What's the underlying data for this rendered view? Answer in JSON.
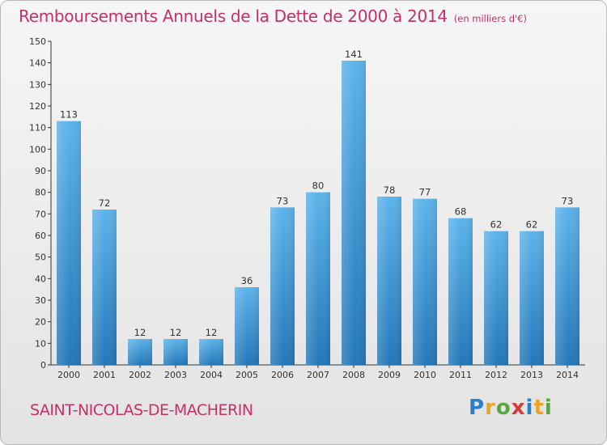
{
  "header": {
    "title": "Remboursements Annuels de la Dette de 2000 à 2014",
    "unit": "(en milliers d'€)"
  },
  "footer": {
    "commune": "SAINT-NICOLAS-DE-MACHERIN",
    "logo_letters": [
      "P",
      "r",
      "o",
      "x",
      "i",
      "t",
      "i"
    ]
  },
  "colors": {
    "title": "#c5306a",
    "bar_top": "#5cb3ea",
    "bar_bottom": "#2477b8",
    "axis": "#333333"
  },
  "chart_data": {
    "type": "bar",
    "title": "Remboursements Annuels de la Dette de 2000 à 2014",
    "ylabel": "",
    "xlabel": "",
    "categories": [
      "2000",
      "2001",
      "2002",
      "2003",
      "2004",
      "2005",
      "2006",
      "2007",
      "2008",
      "2009",
      "2010",
      "2011",
      "2012",
      "2013",
      "2014"
    ],
    "values": [
      113,
      72,
      12,
      12,
      12,
      36,
      73,
      80,
      141,
      78,
      77,
      68,
      62,
      62,
      73
    ],
    "ylim": [
      0,
      150
    ],
    "yticks": [
      0,
      10,
      20,
      30,
      40,
      50,
      60,
      70,
      80,
      90,
      100,
      110,
      120,
      130,
      140,
      150
    ],
    "grid": false,
    "legend": "none"
  }
}
